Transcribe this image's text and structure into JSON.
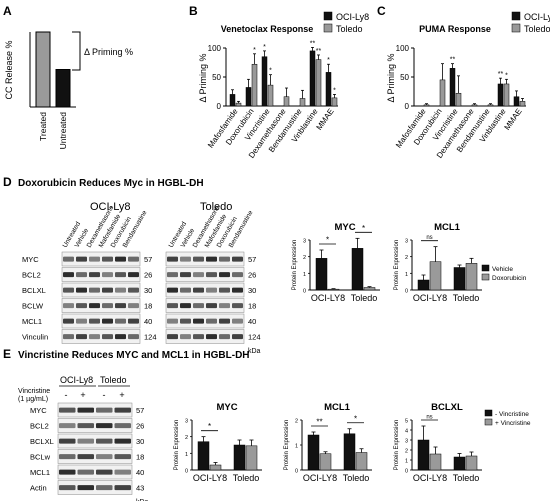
{
  "panels": {
    "A": {
      "letter": "A",
      "ylabel": "CC Release %",
      "delta_label": "Δ Priming %"
    },
    "B": {
      "letter": "B",
      "title": "Venetoclax Response",
      "ylabel": "Δ Priming %"
    },
    "C": {
      "letter": "C",
      "title": "PUMA Response",
      "ylabel": "Δ Priming %"
    },
    "D": {
      "letter": "D",
      "title": "Doxorubicin Reduces Myc in HGBL-DH",
      "cell1": "OCI-Ly8",
      "cell2": "Toledo",
      "kda": "kDa",
      "lanes": [
        "Untreated",
        "Vehicle",
        "Dexamethasone",
        "Mafosfamide",
        "Doxorubicin",
        "Bendamustine"
      ]
    },
    "E": {
      "letter": "E",
      "title": "Vincristine Reduces MYC and MCL1 in HGBL-DH",
      "cell1": "OCI-Ly8",
      "cell2": "Toledo",
      "kda": "kDa",
      "treat_label": "Vincristine",
      "treat_dose": "(1 µg/mL)",
      "minus": "-",
      "plus": "+"
    }
  },
  "blots": {
    "D": [
      {
        "name": "MYC",
        "kda": "57"
      },
      {
        "name": "BCL2",
        "kda": "26"
      },
      {
        "name": "BCLXL",
        "kda": "30"
      },
      {
        "name": "BCLW",
        "kda": "18"
      },
      {
        "name": "MCL1",
        "kda": "40"
      },
      {
        "name": "Vinculin",
        "kda": "124"
      }
    ],
    "E": [
      {
        "name": "MYC",
        "kda": "57"
      },
      {
        "name": "BCL2",
        "kda": "26"
      },
      {
        "name": "BCLXL",
        "kda": "30"
      },
      {
        "name": "BCLw",
        "kda": "18"
      },
      {
        "name": "MCL1",
        "kda": "40"
      },
      {
        "name": "Actin",
        "kda": "43"
      }
    ]
  },
  "chart_data": [
    {
      "id": "A",
      "type": "bar",
      "title": "",
      "ylabel": "CC Release %",
      "categories": [
        "Treated",
        "Untreated"
      ],
      "values": [
        100,
        50
      ],
      "colors": [
        "#9a9a9a",
        "#111111"
      ],
      "ylim": [
        0,
        100
      ]
    },
    {
      "id": "B",
      "type": "bar",
      "title": "Venetoclax Response",
      "ylabel": "Δ Priming %",
      "ylim": [
        0,
        100
      ],
      "yticks": [
        "0",
        "50",
        "100"
      ],
      "categories": [
        "Mafosfamide",
        "Doxorubicin",
        "Vincristine",
        "Dexamethasone",
        "Bendamustine",
        "Vinblastine",
        "MMAE"
      ],
      "series": [
        {
          "name": "OCI-Ly8",
          "color": "#111111",
          "values": [
            20,
            32,
            85,
            0,
            0,
            95,
            58
          ],
          "err": [
            8,
            14,
            10,
            0,
            0,
            6,
            14
          ]
        },
        {
          "name": "Toledo",
          "color": "#9a9a9a",
          "values": [
            5,
            72,
            36,
            16,
            13,
            80,
            14
          ],
          "err": [
            3,
            18,
            18,
            15,
            14,
            8,
            6
          ]
        }
      ],
      "stars": [
        {
          "cat": 1,
          "s": 1,
          "text": "*"
        },
        {
          "cat": 2,
          "s": 0,
          "text": "*"
        },
        {
          "cat": 2,
          "s": 1,
          "text": "*"
        },
        {
          "cat": 5,
          "s": 0,
          "text": "**"
        },
        {
          "cat": 5,
          "s": 1,
          "text": "**"
        },
        {
          "cat": 6,
          "s": 0,
          "text": "*"
        },
        {
          "cat": 6,
          "s": 1,
          "text": "*"
        }
      ]
    },
    {
      "id": "C",
      "type": "bar",
      "title": "PUMA Response",
      "ylabel": "Δ Priming %",
      "ylim": [
        0,
        100
      ],
      "yticks": [
        "0",
        "50",
        "100"
      ],
      "categories": [
        "Mafosfamide",
        "Doxorubicin",
        "Vincristine",
        "Dexamethasone",
        "Bendamustine",
        "Vinblastine",
        "MMAE"
      ],
      "series": [
        {
          "name": "OCI-Ly8",
          "color": "#111111",
          "values": [
            0,
            0,
            65,
            0,
            0,
            38,
            16
          ],
          "err": [
            0,
            0,
            8,
            0,
            0,
            10,
            10
          ]
        },
        {
          "name": "Toledo",
          "color": "#9a9a9a",
          "values": [
            2,
            45,
            22,
            2,
            2,
            38,
            8
          ],
          "err": [
            2,
            28,
            30,
            2,
            2,
            8,
            5
          ]
        }
      ],
      "stars": [
        {
          "cat": 2,
          "s": 0,
          "text": "**"
        },
        {
          "cat": 5,
          "s": 0,
          "text": "**"
        },
        {
          "cat": 5,
          "s": 1,
          "text": "*"
        }
      ]
    },
    {
      "id": "D-MYC",
      "type": "bar",
      "title": "MYC",
      "ylabel": "Protein Expression",
      "categories": [
        "OCI-LY8",
        "Toledo"
      ],
      "ylim": [
        0,
        3
      ],
      "series": [
        {
          "name": "Vehicle",
          "color": "#111111",
          "values": [
            1.9,
            2.5
          ],
          "err": [
            0.5,
            0.6
          ]
        },
        {
          "name": "Doxorubicin",
          "color": "#9a9a9a",
          "values": [
            0.05,
            0.15
          ],
          "err": [
            0.03,
            0.05
          ]
        }
      ],
      "sig": [
        {
          "cat": 0,
          "text": "*"
        },
        {
          "cat": 1,
          "text": "*"
        }
      ]
    },
    {
      "id": "D-MCL1",
      "type": "bar",
      "title": "MCL1",
      "ylabel": "Protein Expression",
      "categories": [
        "OCI-LY8",
        "Toledo"
      ],
      "ylim": [
        0,
        3
      ],
      "series": [
        {
          "name": "Vehicle",
          "color": "#111111",
          "values": [
            0.6,
            1.35
          ],
          "err": [
            0.3,
            0.15
          ]
        },
        {
          "name": "Doxorubicin",
          "color": "#9a9a9a",
          "values": [
            1.7,
            1.6
          ],
          "err": [
            0.9,
            0.3
          ]
        }
      ],
      "sig": [
        {
          "cat": 0,
          "text": "ns"
        }
      ]
    },
    {
      "id": "E-MYC",
      "type": "bar",
      "title": "MYC",
      "ylabel": "Protein Expression",
      "categories": [
        "OCI-LY8",
        "Toledo"
      ],
      "ylim": [
        0,
        3
      ],
      "series": [
        {
          "name": "- Vincristine",
          "color": "#111111",
          "values": [
            1.7,
            1.5
          ],
          "err": [
            0.3,
            0.3
          ]
        },
        {
          "name": "+ Vincristine",
          "color": "#9a9a9a",
          "values": [
            0.3,
            1.45
          ],
          "err": [
            0.15,
            0.35
          ]
        }
      ],
      "sig": [
        {
          "cat": 0,
          "text": "*"
        }
      ]
    },
    {
      "id": "E-MCL1",
      "type": "bar",
      "title": "MCL1",
      "ylabel": "Protein Expression",
      "categories": [
        "OCI-LY8",
        "Toledo"
      ],
      "ylim": [
        0,
        2
      ],
      "series": [
        {
          "name": "- Vincristine",
          "color": "#111111",
          "values": [
            1.4,
            1.45
          ],
          "err": [
            0.12,
            0.2
          ]
        },
        {
          "name": "+ Vincristine",
          "color": "#9a9a9a",
          "values": [
            0.65,
            0.7
          ],
          "err": [
            0.08,
            0.15
          ]
        }
      ],
      "sig": [
        {
          "cat": 0,
          "text": "**"
        },
        {
          "cat": 1,
          "text": "*"
        }
      ]
    },
    {
      "id": "E-BCLXL",
      "type": "bar",
      "title": "BCLXL",
      "ylabel": "Protein Expression",
      "categories": [
        "OCI-LY8",
        "Toledo"
      ],
      "ylim": [
        0,
        5
      ],
      "series": [
        {
          "name": "- Vincristine",
          "color": "#111111",
          "values": [
            3.0,
            1.3
          ],
          "err": [
            1.4,
            0.35
          ]
        },
        {
          "name": "+ Vincristine",
          "color": "#9a9a9a",
          "values": [
            1.6,
            1.4
          ],
          "err": [
            0.7,
            0.4
          ]
        }
      ],
      "sig": [
        {
          "cat": 0,
          "text": "ns"
        }
      ]
    }
  ]
}
